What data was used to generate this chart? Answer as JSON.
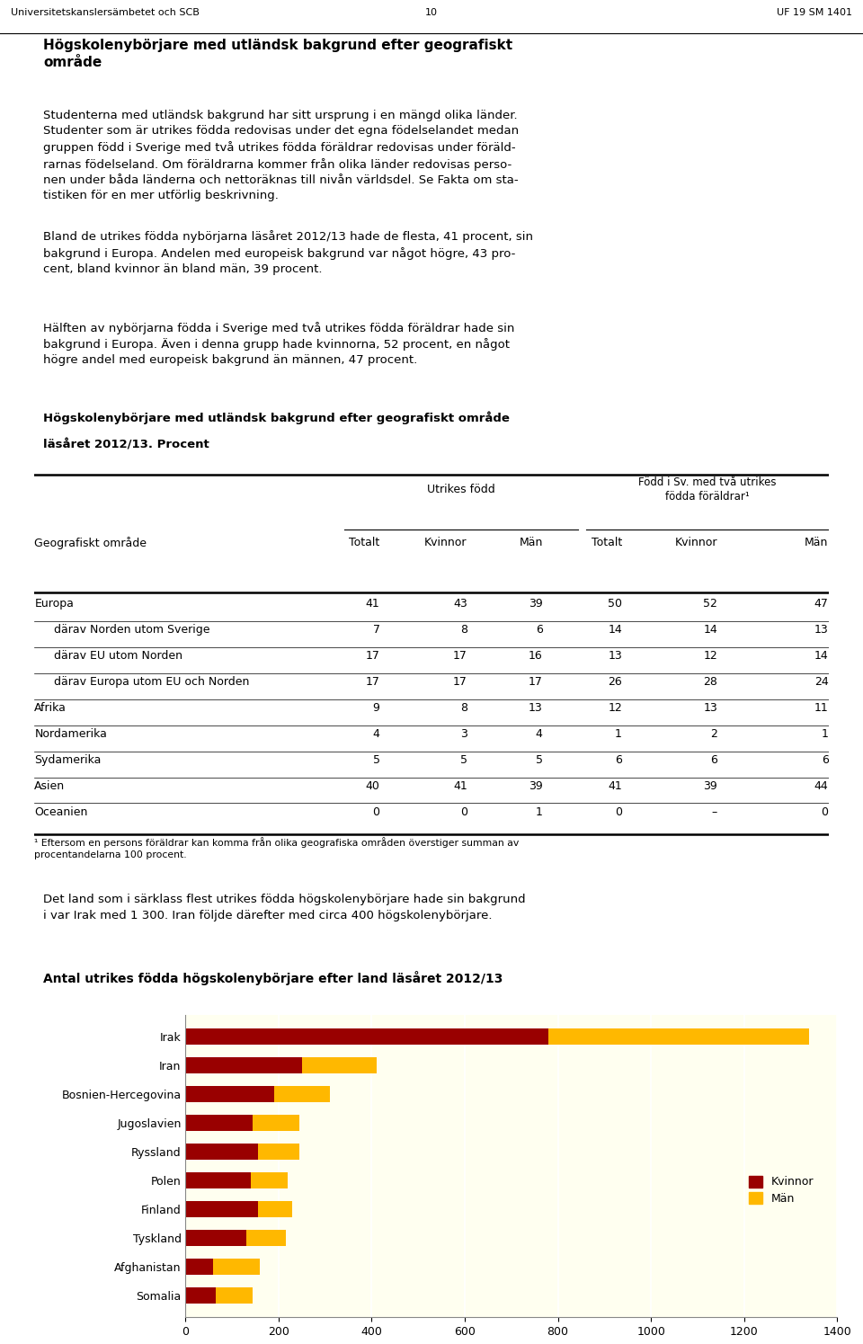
{
  "page_header_left": "Universitetskanslersämbetet och SCB",
  "page_header_center": "10",
  "page_header_right": "UF 19 SM 1401",
  "section_title": "Högskolenybörjare med utländsk bakgrund efter geografiskt\nområde",
  "intro_line1": "Studenterna med utländsk bakgrund har sitt ursprung i en mängd olika länder.",
  "intro_line2": "Studenter som är utrikes födda redovisas under det egna födelselandet medan",
  "intro_line3": "gruppen född i Sverige med två utrikes födda föräldrar redovisas under föräld-",
  "intro_line4": "rarnas födelseland. Om föräldrarna kommer från olika länder redovisas perso-",
  "intro_line5": "nen under båda länderna och nettорäknas till nivån värlsdel. Se Fakta om sta-",
  "intro_line6": "tistiken för en mer utförlig beskrivning.",
  "intro_text": "Studenterna med utländsk bakgrund har sitt ursprung i en mängd olika länder.\nStudenter som är utrikes födda redovisas under det egna födelselandet medan\ngruppen född i Sverige med två utrikes födda föräldrar redovisas under föräld-\nrarnas födelseland. Om föräldrarna kommer från olika länder redovisas perso-\nnen under båda länderna och nettoräknas till nivån världsdel. Se Fakta om sta-\ntistiken för en mer utförlig beskrivning.",
  "para2": "Bland de utrikes födda nybörjarna läsåret 2012/13 hade de flesta, 41 procent, sin\nbakgrund i Europa. Andelen med europeisk bakgrund var något högre, 43 pro-\ncent, bland kvinnor än bland män, 39 procent.",
  "para3": "Hälften av nybörjarna födda i Sverige med två utrikes födda föräldrar hade sin\nbakgrund i Europa. Även i denna grupp hade kvinnorna, 52 procent, en något\nhögre andel med europeisk bakgrund än männen, 47 procent.",
  "table_title_normal": "Högskolenybörjare med utländsk bakgrund efter geografiskt område",
  "table_title_bold_suffix": "läsåret 2012/13.",
  "table_title_bold_word": "Procent",
  "table_title_line1": "Högskolenybörjare med utländsk bakgrund efter geografiskt område",
  "table_title_line2": "läsåret 2012/13. Procent",
  "table_rows": [
    [
      "Europa",
      "41",
      "43",
      "39",
      "50",
      "52",
      "47"
    ],
    [
      " därav Norden utom Sverige",
      "7",
      "8",
      "6",
      "14",
      "14",
      "13"
    ],
    [
      " därav EU utom Norden",
      "17",
      "17",
      "16",
      "13",
      "12",
      "14"
    ],
    [
      " därav Europa utom EU och Norden",
      "17",
      "17",
      "17",
      "26",
      "28",
      "24"
    ],
    [
      "Afrika",
      "9",
      "8",
      "13",
      "12",
      "13",
      "11"
    ],
    [
      "Nordamerika",
      "4",
      "3",
      "4",
      "1",
      "2",
      "1"
    ],
    [
      "Sydamerika",
      "5",
      "5",
      "5",
      "6",
      "6",
      "6"
    ],
    [
      "Asien",
      "40",
      "41",
      "39",
      "41",
      "39",
      "44"
    ],
    [
      "Oceanien",
      "0",
      "0",
      "1",
      "0",
      "–",
      "0"
    ]
  ],
  "footnote_line1": "¹ Eftersom en persons föräldrar kan komma från olika geografiska områden överstiger summan av",
  "footnote_line2": "procentandelarna 100 procent.",
  "para4_line1": "Det land som i särklass flest utrikes födda högskolenybörjare hade sin bakgrund",
  "para4_line2": "i var Irak med 1 300. Iran följde därefter med circa 400 högskolenybörjare.",
  "chart2_title": "Antal utrikes födda högskolenybörjare efter land läsåret 2012/13",
  "countries": [
    "Somalia",
    "Afghanistan",
    "Tyskland",
    "Finland",
    "Polen",
    "Ryssland",
    "Jugoslavien",
    "Bosnien-Hercegovina",
    "Iran",
    "Irak"
  ],
  "kvinnor_values": [
    65,
    60,
    130,
    155,
    140,
    155,
    145,
    190,
    250,
    780
  ],
  "man_values": [
    80,
    100,
    85,
    75,
    80,
    90,
    100,
    120,
    160,
    560
  ],
  "bar_color_kvinnor": "#990000",
  "bar_color_man": "#FFB800",
  "chart_bg": "#FFFFF0"
}
